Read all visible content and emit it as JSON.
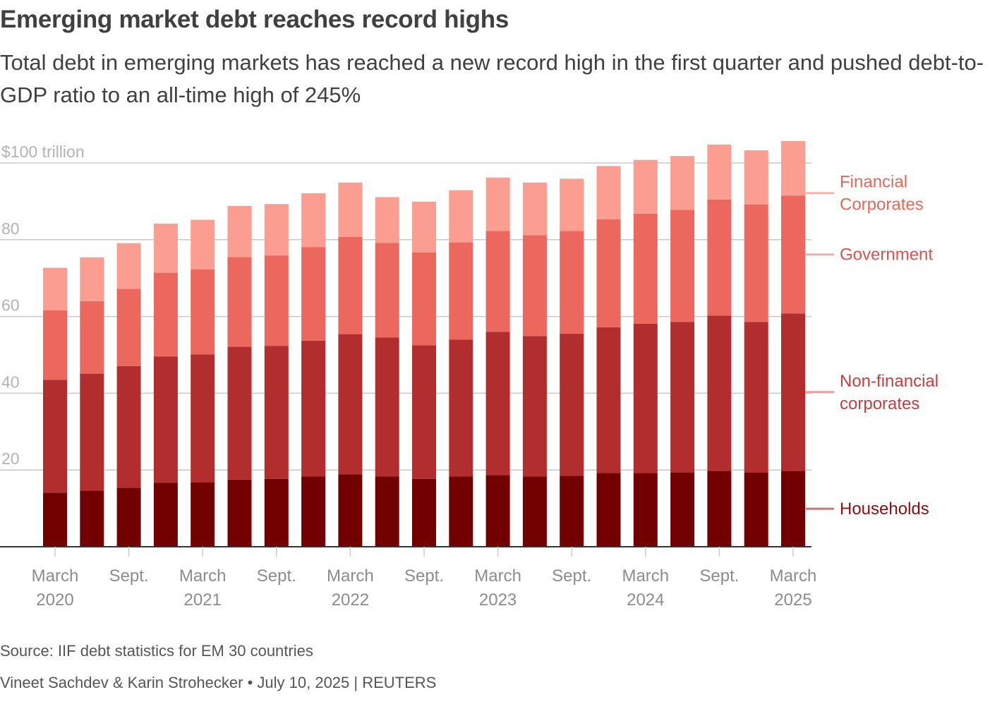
{
  "header": {
    "title": "Emerging market debt reaches record highs",
    "subtitle": "Total debt in emerging markets has reached a new record high in the first quarter and pushed debt-to-GDP ratio to an all-time high of 245%"
  },
  "footer": {
    "source": "Source: IIF debt statistics for EM 30 countries",
    "authors": "Vineet Sachdev & Karin Strohecker",
    "bullet": " • ",
    "date": "July 10, 2025",
    "separator": " | ",
    "publisher": "REUTERS"
  },
  "chart_data": {
    "type": "bar",
    "stacked": true,
    "title": "Emerging market debt reaches record highs",
    "unit": "trillion USD",
    "ylim": [
      0,
      100
    ],
    "yticks": [
      {
        "value": 100,
        "label": "$100 trillion"
      },
      {
        "value": 80,
        "label": "80"
      },
      {
        "value": 60,
        "label": "60"
      },
      {
        "value": 40,
        "label": "40"
      },
      {
        "value": 20,
        "label": "20"
      }
    ],
    "grid": true,
    "categories": [
      "Q1 2020",
      "Q2 2020",
      "Q3 2020",
      "Q4 2020",
      "Q1 2021",
      "Q2 2021",
      "Q3 2021",
      "Q4 2021",
      "Q1 2022",
      "Q2 2022",
      "Q3 2022",
      "Q4 2022",
      "Q1 2023",
      "Q2 2023",
      "Q3 2023",
      "Q4 2023",
      "Q1 2024",
      "Q2 2024",
      "Q3 2024",
      "Q4 2024",
      "Q1 2025"
    ],
    "xticks": [
      {
        "index": 0,
        "line1": "March",
        "line2": "2020"
      },
      {
        "index": 2,
        "line1": "Sept.",
        "line2": ""
      },
      {
        "index": 4,
        "line1": "March",
        "line2": "2021"
      },
      {
        "index": 6,
        "line1": "Sept.",
        "line2": ""
      },
      {
        "index": 8,
        "line1": "March",
        "line2": "2022"
      },
      {
        "index": 10,
        "line1": "Sept.",
        "line2": ""
      },
      {
        "index": 12,
        "line1": "March",
        "line2": "2023"
      },
      {
        "index": 14,
        "line1": "Sept.",
        "line2": ""
      },
      {
        "index": 16,
        "line1": "March",
        "line2": "2024"
      },
      {
        "index": 18,
        "line1": "Sept.",
        "line2": ""
      },
      {
        "index": 20,
        "line1": "March",
        "line2": "2025"
      }
    ],
    "series": [
      {
        "name": "Households",
        "label_lines": [
          "Households"
        ],
        "color": "#730000",
        "label_color": "#8c1010",
        "tick_color": "#c07a7a",
        "values": [
          14.1,
          14.6,
          15.4,
          16.7,
          16.8,
          17.5,
          17.7,
          18.3,
          18.9,
          18.3,
          17.7,
          18.3,
          18.7,
          18.3,
          18.5,
          19.2,
          19.2,
          19.3,
          19.8,
          19.3,
          19.8
        ]
      },
      {
        "name": "Non-financial corporates",
        "label_lines": [
          "Non-financial",
          "corporates"
        ],
        "color": "#b22d2e",
        "label_color": "#c24040",
        "tick_color": "#e6a0a0",
        "values": [
          29.4,
          30.5,
          31.7,
          32.9,
          33.3,
          34.6,
          34.6,
          35.4,
          36.5,
          36.2,
          34.8,
          35.7,
          37.3,
          36.6,
          37.0,
          38.0,
          38.9,
          39.3,
          40.4,
          39.3,
          41.0
        ]
      },
      {
        "name": "Government",
        "label_lines": [
          "Government"
        ],
        "color": "#ec675e",
        "label_color": "#d9534f",
        "tick_color": "#f2b0ab",
        "values": [
          18.1,
          18.9,
          20.1,
          21.8,
          22.2,
          23.4,
          23.6,
          24.4,
          25.3,
          24.7,
          24.2,
          25.3,
          26.3,
          26.3,
          26.8,
          28.1,
          28.7,
          29.2,
          30.3,
          30.6,
          30.7
        ]
      },
      {
        "name": "Financial Corporates",
        "label_lines": [
          "Financial",
          "Corporates"
        ],
        "color": "#fb9d90",
        "label_color": "#e06a5a",
        "tick_color": "#f6b9b0",
        "values": [
          11.1,
          11.4,
          11.9,
          12.8,
          12.9,
          13.3,
          13.4,
          14.0,
          14.2,
          11.9,
          13.2,
          13.6,
          13.9,
          13.7,
          13.6,
          13.9,
          14.0,
          14.0,
          14.3,
          14.1,
          14.2
        ]
      }
    ]
  }
}
